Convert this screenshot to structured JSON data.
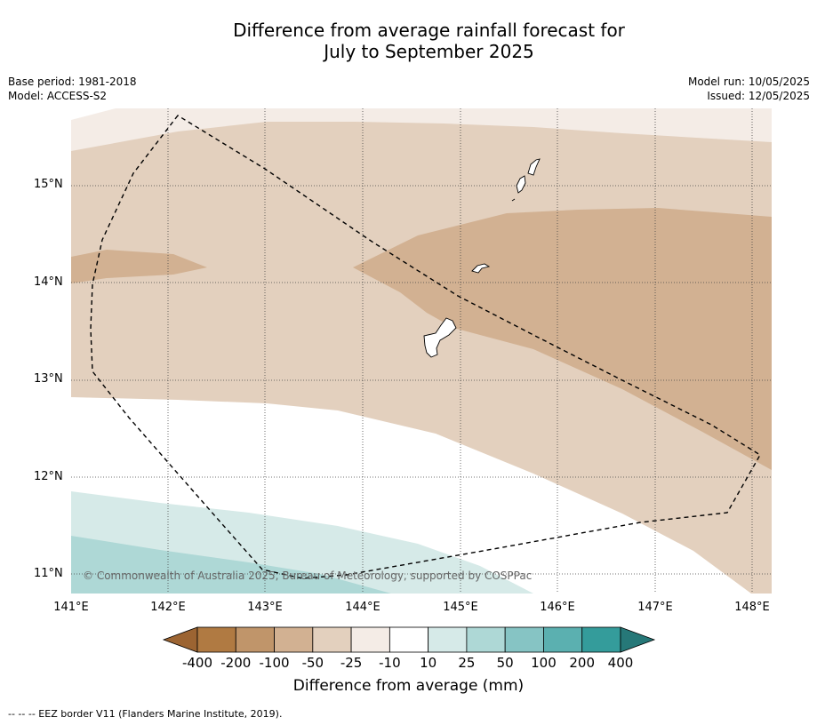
{
  "title_line1": "Difference from average rainfall forecast for",
  "title_line2": "July to September 2025",
  "meta_left": [
    "Base period: 1981-2018",
    "Model: ACCESS-S2"
  ],
  "meta_right": [
    "Model run: 10/05/2025",
    "Issued: 12/05/2025"
  ],
  "lat_labels": [
    "15°N",
    "14°N",
    "13°N",
    "12°N",
    "11°N"
  ],
  "lon_labels": [
    "141°E",
    "142°E",
    "143°E",
    "144°E",
    "145°E",
    "146°E",
    "147°E",
    "148°E"
  ],
  "copyright": "© Commonwealth of Australia 2025, Bureau of Meteorology, supported by COSPPac",
  "colorbar": {
    "title": "Difference from average (mm)",
    "labels": [
      "-400",
      "-200",
      "-100",
      "-50",
      "-25",
      "-10",
      "10",
      "25",
      "50",
      "100",
      "200",
      "400"
    ],
    "colors": [
      "#9c6432",
      "#b07a42",
      "#c0956a",
      "#d2b192",
      "#e3d0be",
      "#f4ece6",
      "#ffffff",
      "#d6eae8",
      "#aed8d6",
      "#86c4c4",
      "#5bb0b0",
      "#349c9b",
      "#267878"
    ]
  },
  "contour_colors": {
    "minus50": "#d2b192",
    "minus25": "#e3d0be",
    "minus10": "#f4ece6",
    "neutral": "#ffffff",
    "plus25": "#d6eae8",
    "plus50": "#aed8d6"
  },
  "footnote": "--  --  -- EEZ border V11 (Flanders Marine Institute, 2019)."
}
